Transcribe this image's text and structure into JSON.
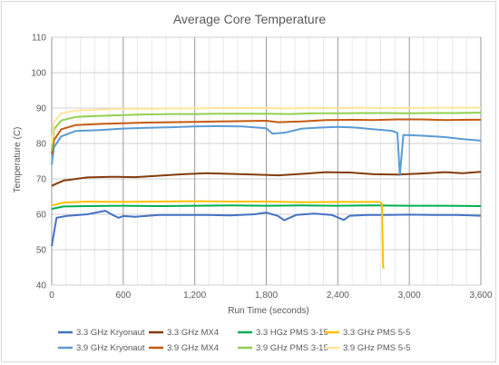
{
  "chart_data": {
    "type": "line",
    "title": "Average Core Temperature",
    "xlabel": "Run Time (seconds)",
    "ylabel": "Temperature (C)",
    "xlim": [
      0,
      3600
    ],
    "ylim": [
      40,
      110
    ],
    "x_ticks": [
      0,
      600,
      1200,
      1800,
      2400,
      3000,
      3600
    ],
    "x_tick_labels": [
      "0",
      "600",
      "1,200",
      "1,800",
      "2,400",
      "3,000",
      "3,600"
    ],
    "y_ticks": [
      40,
      50,
      60,
      70,
      80,
      90,
      100,
      110
    ],
    "y_tick_labels": [
      "40",
      "50",
      "60",
      "70",
      "80",
      "90",
      "100",
      "110"
    ],
    "x_minor_step": 120,
    "grid": true,
    "legend_position": "bottom",
    "series": [
      {
        "name": "3.3 GHz Kryonaut",
        "color": "#4472c4",
        "x": [
          0,
          40,
          120,
          300,
          450,
          500,
          560,
          600,
          700,
          900,
          1100,
          1300,
          1500,
          1700,
          1800,
          1900,
          1950,
          2050,
          2200,
          2350,
          2450,
          2500,
          2650,
          2800,
          3000,
          3200,
          3400,
          3600
        ],
        "y": [
          51,
          59,
          59.5,
          60,
          61,
          60,
          59,
          59.5,
          59.3,
          59.8,
          59.8,
          59.8,
          59.7,
          60.0,
          60.5,
          59.5,
          58.3,
          59.8,
          60.2,
          59.8,
          58.4,
          59.6,
          59.8,
          59.8,
          59.9,
          59.8,
          59.8,
          59.6
        ]
      },
      {
        "name": "3.3 GHz MX4",
        "color": "#843c0c",
        "x": [
          0,
          30,
          100,
          300,
          500,
          700,
          900,
          1100,
          1300,
          1500,
          1700,
          1900,
          2100,
          2300,
          2500,
          2700,
          2900,
          3100,
          3300,
          3450,
          3600
        ],
        "y": [
          68,
          68.5,
          69.5,
          70.4,
          70.6,
          70.5,
          70.9,
          71.3,
          71.6,
          71.4,
          71.2,
          71.0,
          71.4,
          71.9,
          71.8,
          71.3,
          71.2,
          71.5,
          71.9,
          71.6,
          72.0
        ]
      },
      {
        "name": "3.3 HGz PMS 3-15",
        "color": "#00b050",
        "x": [
          0,
          100,
          300,
          600,
          900,
          1200,
          1500,
          1800,
          2100,
          2400,
          2700,
          3000,
          3300,
          3600
        ],
        "y": [
          61.5,
          62.2,
          62.3,
          62.4,
          62.3,
          62.4,
          62.5,
          62.4,
          62.5,
          62.4,
          62.5,
          62.4,
          62.4,
          62.3
        ]
      },
      {
        "name": "3.3 GHz PMS 5-5",
        "color": "#ffc000",
        "x": [
          0,
          100,
          300,
          600,
          900,
          1200,
          1500,
          1800,
          2100,
          2400,
          2600,
          2750,
          2770,
          2780,
          2790
        ],
        "y": [
          62.5,
          63.3,
          63.6,
          63.5,
          63.6,
          63.7,
          63.6,
          63.6,
          63.4,
          63.5,
          63.5,
          63.5,
          63.0,
          45,
          44.8
        ]
      },
      {
        "name": "3.9 GHz Kryonaut",
        "color": "#5b9bd5",
        "x": [
          0,
          20,
          80,
          200,
          400,
          600,
          800,
          1000,
          1200,
          1400,
          1600,
          1800,
          1850,
          1950,
          2100,
          2250,
          2400,
          2550,
          2700,
          2850,
          2900,
          2920,
          2950,
          3100,
          3300,
          3450,
          3600
        ],
        "y": [
          74,
          79,
          82,
          83.5,
          83.8,
          84.2,
          84.4,
          84.6,
          84.8,
          84.9,
          84.8,
          84.3,
          82.8,
          83.0,
          84.2,
          84.5,
          84.7,
          84.5,
          84.0,
          83.6,
          83.0,
          71,
          82.4,
          82.2,
          81.8,
          81.2,
          80.8
        ]
      },
      {
        "name": "3.9 GHz MX4",
        "color": "#c55a11",
        "x": [
          0,
          20,
          80,
          200,
          400,
          600,
          800,
          1000,
          1200,
          1400,
          1600,
          1800,
          1900,
          2100,
          2300,
          2500,
          2700,
          2900,
          3100,
          3300,
          3500,
          3600
        ],
        "y": [
          77,
          81,
          84,
          85.2,
          85.5,
          85.7,
          85.9,
          86.0,
          86.1,
          86.2,
          86.3,
          86.4,
          86.0,
          86.2,
          86.6,
          86.7,
          86.6,
          86.8,
          86.8,
          86.6,
          86.7,
          86.7
        ]
      },
      {
        "name": "3.9 GHz PMS 3-15",
        "color": "#92d050",
        "x": [
          0,
          20,
          80,
          200,
          400,
          600,
          800,
          1000,
          1200,
          1400,
          1600,
          1800,
          2000,
          2200,
          2400,
          2600,
          2800,
          3000,
          3200,
          3400,
          3600
        ],
        "y": [
          78,
          84,
          86.5,
          87.5,
          87.8,
          88.0,
          88.2,
          88.3,
          88.3,
          88.4,
          88.4,
          88.4,
          88.3,
          88.5,
          88.5,
          88.6,
          88.6,
          88.5,
          88.6,
          88.6,
          88.7
        ]
      },
      {
        "name": "3.9 GHz PMS 5-5",
        "color": "#ffe699",
        "x": [
          0,
          20,
          80,
          200,
          400,
          600,
          800,
          1000,
          1200,
          1400,
          1600,
          1800,
          2000,
          2200,
          2400,
          2600,
          2800,
          3000,
          3200,
          3400,
          3600
        ],
        "y": [
          80,
          86,
          88.5,
          89.3,
          89.6,
          89.8,
          89.8,
          89.9,
          89.9,
          90.0,
          90.0,
          90.0,
          89.9,
          90.0,
          90.0,
          90.1,
          90.0,
          90.0,
          90.1,
          90.1,
          90.1
        ]
      }
    ]
  }
}
